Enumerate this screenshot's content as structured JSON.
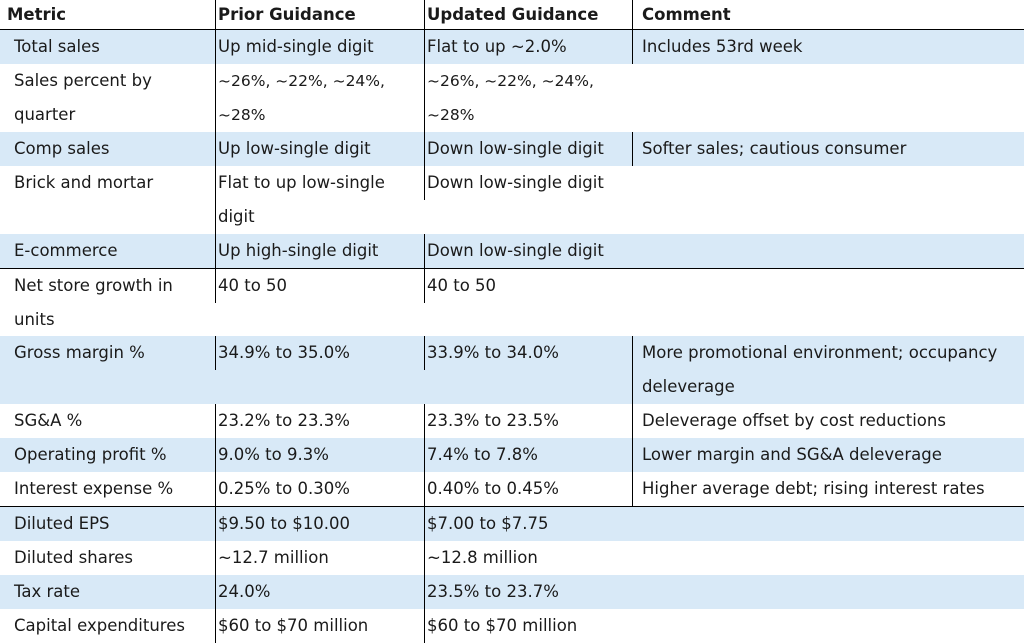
{
  "headers": [
    "Metric",
    "Prior Guidance",
    "Updated Guidance",
    "Comment"
  ],
  "rows": [
    {
      "metric": "Total sales",
      "prior": "Up mid-single digit",
      "updated": "Flat to up ~2.0%",
      "comment": "Includes 53rd week"
    },
    {
      "metric": "Sales percent by quarter",
      "prior": "~26%, ~22%, ~24%, ~28%",
      "updated": "~26%, ~22%, ~24%, ~28%",
      "comment": ""
    },
    {
      "metric": "Comp sales",
      "prior": "Up low-single digit",
      "updated": "Down low-single digit",
      "comment": "Softer sales; cautious consumer"
    },
    {
      "metric": "Brick and mortar",
      "prior": "Flat to up low-single digit",
      "updated": "Down low-single digit",
      "comment": ""
    },
    {
      "metric": "E-commerce",
      "prior": "Up high-single digit",
      "updated": "Down low-single digit",
      "comment": ""
    },
    {
      "metric": "Net store growth in units",
      "prior": "40 to 50",
      "updated": "40 to 50",
      "comment": ""
    },
    {
      "metric": "Gross margin %",
      "prior": "34.9% to 35.0%",
      "updated": "33.9% to 34.0%",
      "comment": "More promotional environment; occupancy deleverage"
    },
    {
      "metric": "SG&A %",
      "prior": "23.2% to 23.3%",
      "updated": "23.3% to 23.5%",
      "comment": "Deleverage offset by cost reductions"
    },
    {
      "metric": "Operating profit %",
      "prior": "9.0% to 9.3%",
      "updated": "7.4% to 7.8%",
      "comment": "Lower margin and SG&A deleverage"
    },
    {
      "metric": "Interest expense %",
      "prior": "0.25% to 0.30%",
      "updated": "0.40% to 0.45%",
      "comment": "Higher average debt; rising interest rates"
    },
    {
      "metric": "Diluted EPS",
      "prior": "$9.50 to $10.00",
      "updated": "$7.00 to $7.75",
      "comment": ""
    },
    {
      "metric": "Diluted shares",
      "prior": "~12.7 million",
      "updated": "~12.8 million",
      "comment": ""
    },
    {
      "metric": "Tax rate",
      "prior": "24.0%",
      "updated": "23.5% to 23.7%",
      "comment": ""
    },
    {
      "metric": "Capital expenditures",
      "prior": "$60 to $70 million",
      "updated": "$60 to $70 million",
      "comment": ""
    }
  ],
  "colors": {
    "row_highlight": "#d8e9f7",
    "border": "#000000"
  }
}
